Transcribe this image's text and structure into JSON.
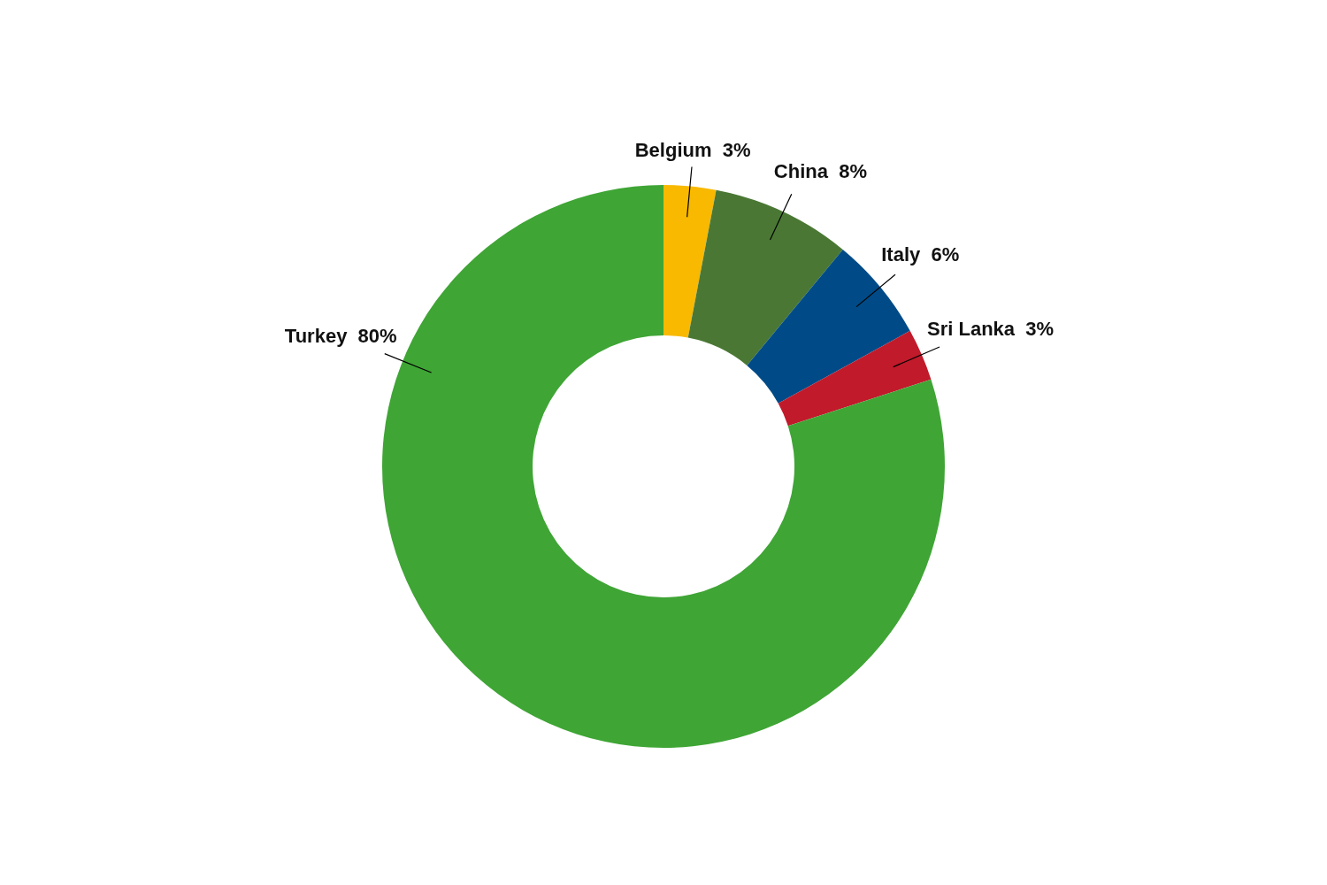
{
  "chart_data": {
    "type": "donut",
    "categories": [
      "Belgium",
      "China",
      "Italy",
      "Sri Lanka",
      "Turkey"
    ],
    "values": [
      3,
      8,
      6,
      3,
      80
    ],
    "value_labels": [
      "3%",
      "8%",
      "6%",
      "3%",
      "80%"
    ],
    "colors": [
      "#f8b900",
      "#4a7834",
      "#004b87",
      "#c11a2b",
      "#3fa535"
    ],
    "legend": false
  }
}
